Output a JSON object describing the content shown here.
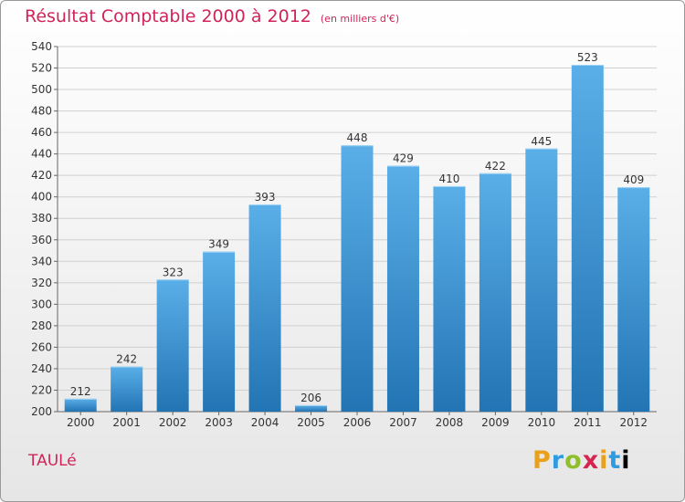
{
  "header": {
    "title": "Résultat Comptable 2000 à 2012",
    "subtitle": "(en milliers d'€)"
  },
  "footer": {
    "commune": "TAULé",
    "brand": [
      "P",
      "r",
      "o",
      "x",
      "i",
      "t",
      "i"
    ]
  },
  "colors": {
    "bar_top": "#5aafe8",
    "bar_bottom": "#2274b3",
    "title": "#d0245a",
    "grid": "#d0d0d0"
  },
  "chart_data": {
    "type": "bar",
    "title": "Résultat Comptable 2000 à 2012",
    "subtitle": "(en milliers d'€)",
    "xlabel": "",
    "ylabel": "",
    "categories": [
      "2000",
      "2001",
      "2002",
      "2003",
      "2004",
      "2005",
      "2006",
      "2007",
      "2008",
      "2009",
      "2010",
      "2011",
      "2012"
    ],
    "values": [
      212,
      242,
      323,
      349,
      393,
      206,
      448,
      429,
      410,
      422,
      445,
      523,
      409
    ],
    "ylim": [
      200,
      540
    ],
    "yticks": [
      200,
      220,
      240,
      260,
      280,
      300,
      320,
      340,
      360,
      380,
      400,
      420,
      440,
      460,
      480,
      500,
      520,
      540
    ],
    "grid": true
  }
}
